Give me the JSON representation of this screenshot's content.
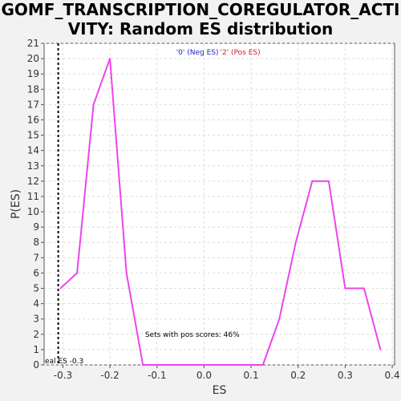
{
  "chart_data": {
    "type": "line",
    "title_lines": [
      "GOMF_TRANSCRIPTION_COREGULATOR_ACTI",
      "VITY: Random ES distribution"
    ],
    "xlabel": "ES",
    "ylabel": "P(ES)",
    "xlim": [
      -0.34,
      0.405
    ],
    "ylim": [
      0,
      21
    ],
    "xticks": [
      -0.3,
      -0.2,
      -0.1,
      0.0,
      0.1,
      0.2,
      0.3,
      0.4
    ],
    "xtick_labels": [
      "-0.3",
      "-0.2",
      "-0.1",
      "0.0",
      "0.1",
      "0.2",
      "0.3",
      "0.4"
    ],
    "yticks": [
      0,
      1,
      2,
      3,
      4,
      5,
      6,
      7,
      8,
      9,
      10,
      11,
      12,
      13,
      14,
      15,
      16,
      17,
      18,
      19,
      20,
      21
    ],
    "grid": true,
    "series": [
      {
        "color": "#ee44ee",
        "x": [
          -0.305,
          -0.27,
          -0.235,
          -0.2,
          -0.165,
          -0.13,
          -0.095,
          -0.06,
          -0.025,
          0.01,
          0.05,
          0.09,
          0.125,
          0.16,
          0.195,
          0.23,
          0.265,
          0.3,
          0.34,
          0.375
        ],
        "y": [
          5,
          6,
          17,
          20,
          6,
          0,
          0,
          0,
          0,
          0,
          0,
          0,
          0,
          3,
          8,
          12,
          12,
          5,
          5,
          1
        ]
      }
    ],
    "real_es": {
      "x": -0.31,
      "label": "eal ES -0.3"
    },
    "legend": {
      "position": "top-center",
      "entries": [
        {
          "text": "'0' (Neg ES)",
          "color": "#2222cc"
        },
        {
          "text": "'2' (Pos ES)",
          "color": "#cc2222"
        }
      ]
    },
    "annotation": "Sets with pos scores: 46%"
  }
}
